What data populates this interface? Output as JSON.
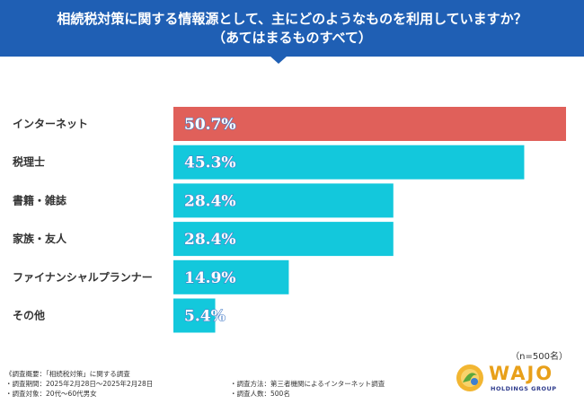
{
  "header": {
    "title_line1": "相続税対策に関する情報源として、主にどのようなものを利用していますか？",
    "title_line2": "（あてはまるものすべて）"
  },
  "chart_data": {
    "type": "bar",
    "orientation": "horizontal",
    "categories": [
      "インターネット",
      "税理士",
      "書籍・雑誌",
      "家族・友人",
      "ファイナンシャルプランナー",
      "その他"
    ],
    "values": [
      50.7,
      45.3,
      28.4,
      28.4,
      14.9,
      5.4
    ],
    "value_labels": [
      "50.7%",
      "45.3%",
      "28.4%",
      "28.4%",
      "14.9%",
      "5.4%"
    ],
    "unit": "%",
    "xlim": [
      0,
      50.7
    ],
    "highlight_index": 0,
    "colors": {
      "highlight": "#e0605a",
      "default": "#13c8dc"
    },
    "note": "（n=500名）"
  },
  "footer": {
    "title": "《調査概要：「相続税対策」に関する調査",
    "period": "・調査期間：2025年2月28日～2025年2月28日",
    "target": "・調査対象：20代～60代男女",
    "method": "・調査方法：第三者機関によるインターネット調査",
    "count": "・調査人数：500名"
  },
  "logo": {
    "word": "WAJO",
    "sub": "HOLDINGS GROUP"
  }
}
